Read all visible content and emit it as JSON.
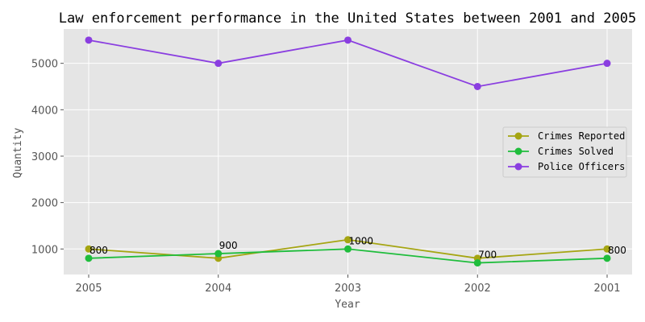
{
  "chart_data": {
    "type": "line",
    "title": "Law enforcement performance in the United States between 2001 and 2005",
    "xlabel": "Year",
    "ylabel": "Quantity",
    "categories": [
      "2005",
      "2004",
      "2003",
      "2002",
      "2001"
    ],
    "ylim": [
      450,
      5740
    ],
    "yticks": [
      1000,
      2000,
      3000,
      4000,
      5000
    ],
    "grid": true,
    "legend_position": "center-right",
    "series": [
      {
        "name": "Crimes Reported",
        "values": [
          1000,
          800,
          1200,
          800,
          1000
        ],
        "color": "#a5a512"
      },
      {
        "name": "Crimes Solved",
        "values": [
          800,
          900,
          1000,
          700,
          800
        ],
        "color": "#1fbd3c"
      },
      {
        "name": "Police Officers",
        "values": [
          5500,
          5000,
          5500,
          4500,
          5000
        ],
        "color": "#8a3ee0"
      }
    ],
    "data_labels": {
      "series": "Crimes Solved",
      "values": [
        "800",
        "900",
        "1000",
        "700",
        "800"
      ]
    }
  }
}
